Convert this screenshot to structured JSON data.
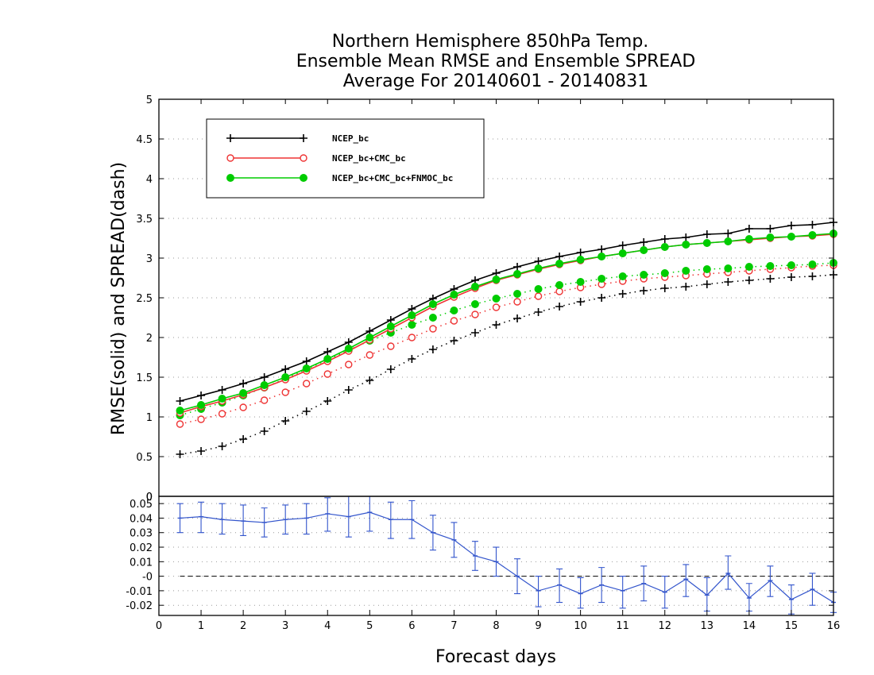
{
  "chart_data": {
    "type": "line",
    "title": [
      "Northern Hemisphere 850hPa Temp.",
      "Ensemble Mean RMSE and Ensemble SPREAD",
      "Average For 20140601 - 20140831"
    ],
    "xlabel": "Forecast days",
    "ylabel": "RMSE(solid)  and  SPREAD(dash)",
    "xlim": [
      0,
      16
    ],
    "x_ticks": [
      "0",
      "1",
      "2",
      "3",
      "4",
      "5",
      "6",
      "7",
      "8",
      "9",
      "10",
      "11",
      "12",
      "13",
      "14",
      "15",
      "16"
    ],
    "top_panel": {
      "ylim": [
        0,
        5
      ],
      "y_ticks": [
        "0",
        "0.5",
        "1",
        "1.5",
        "2",
        "2.5",
        "3",
        "3.5",
        "4",
        "4.5",
        "5"
      ],
      "grid": "horizontal-dotted",
      "legend_position": "top-left",
      "x": [
        0.5,
        1,
        1.5,
        2,
        2.5,
        3,
        3.5,
        4,
        4.5,
        5,
        5.5,
        6,
        6.5,
        7,
        7.5,
        8,
        8.5,
        9,
        9.5,
        10,
        10.5,
        11,
        11.5,
        12,
        12.5,
        13,
        13.5,
        14,
        14.5,
        15,
        15.5,
        16
      ],
      "series": [
        {
          "name": "NCEP_bc",
          "color": "#000000",
          "marker": "plus",
          "rmse": [
            1.2,
            1.27,
            1.34,
            1.42,
            1.5,
            1.6,
            1.7,
            1.82,
            1.94,
            2.08,
            2.22,
            2.36,
            2.49,
            2.61,
            2.72,
            2.81,
            2.89,
            2.96,
            3.02,
            3.07,
            3.11,
            3.16,
            3.2,
            3.24,
            3.26,
            3.3,
            3.31,
            3.37,
            3.37,
            3.41,
            3.42,
            3.45
          ],
          "spread": [
            0.53,
            0.57,
            0.63,
            0.72,
            0.82,
            0.95,
            1.07,
            1.2,
            1.34,
            1.46,
            1.6,
            1.73,
            1.85,
            1.96,
            2.06,
            2.16,
            2.24,
            2.32,
            2.39,
            2.45,
            2.5,
            2.55,
            2.59,
            2.62,
            2.64,
            2.67,
            2.7,
            2.72,
            2.74,
            2.76,
            2.77,
            2.79
          ]
        },
        {
          "name": "NCEP_bc+CMC_bc",
          "color": "#ee3333",
          "marker": "open-circle",
          "rmse": [
            1.05,
            1.13,
            1.2,
            1.28,
            1.37,
            1.47,
            1.58,
            1.7,
            1.83,
            1.97,
            2.11,
            2.25,
            2.39,
            2.51,
            2.62,
            2.72,
            2.79,
            2.86,
            2.92,
            2.97,
            3.02,
            3.06,
            3.1,
            3.14,
            3.17,
            3.19,
            3.21,
            3.23,
            3.25,
            3.27,
            3.28,
            3.3
          ],
          "spread": [
            0.91,
            0.97,
            1.04,
            1.12,
            1.21,
            1.31,
            1.42,
            1.54,
            1.66,
            1.78,
            1.89,
            2.0,
            2.11,
            2.21,
            2.29,
            2.38,
            2.45,
            2.52,
            2.58,
            2.63,
            2.67,
            2.71,
            2.74,
            2.76,
            2.78,
            2.8,
            2.82,
            2.84,
            2.86,
            2.88,
            2.9,
            2.91
          ]
        },
        {
          "name": "NCEP_bc+CMC_bc+FNMOC_bc",
          "color": "#00cc00",
          "marker": "filled-circle",
          "rmse": [
            1.08,
            1.15,
            1.23,
            1.3,
            1.4,
            1.5,
            1.61,
            1.73,
            1.86,
            2.0,
            2.14,
            2.28,
            2.42,
            2.54,
            2.64,
            2.73,
            2.8,
            2.87,
            2.93,
            2.98,
            3.02,
            3.06,
            3.1,
            3.14,
            3.17,
            3.19,
            3.21,
            3.24,
            3.26,
            3.27,
            3.29,
            3.31
          ],
          "spread": [
            1.02,
            1.1,
            1.18,
            1.27,
            1.37,
            1.48,
            1.6,
            1.72,
            1.84,
            1.96,
            2.06,
            2.16,
            2.25,
            2.34,
            2.42,
            2.49,
            2.55,
            2.61,
            2.66,
            2.7,
            2.74,
            2.77,
            2.79,
            2.81,
            2.84,
            2.86,
            2.87,
            2.89,
            2.9,
            2.91,
            2.92,
            2.94
          ]
        }
      ]
    },
    "bottom_panel": {
      "ylim": [
        -0.027,
        0.055
      ],
      "y_ticks": [
        "-0.02",
        "-0.01",
        "-0",
        "0",
        "0.01",
        "0.02",
        "0.03",
        "0.04",
        "0.05"
      ],
      "grid": "horizontal-dotted",
      "zero_line": "dashed",
      "series": {
        "color": "#3355cc",
        "x": [
          0.5,
          1,
          1.5,
          2,
          2.5,
          3,
          3.5,
          4,
          4.5,
          5,
          5.5,
          6,
          6.5,
          7,
          7.5,
          8,
          8.5,
          9,
          9.5,
          10,
          10.5,
          11,
          11.5,
          12,
          12.5,
          13,
          13.5,
          14,
          14.5,
          15,
          15.5,
          16
        ],
        "values": [
          0.04,
          0.041,
          0.039,
          0.038,
          0.037,
          0.039,
          0.04,
          0.043,
          0.041,
          0.044,
          0.039,
          0.039,
          0.03,
          0.025,
          0.014,
          0.01,
          0.0,
          -0.01,
          -0.006,
          -0.012,
          -0.006,
          -0.01,
          -0.005,
          -0.011,
          -0.002,
          -0.013,
          0.002,
          -0.015,
          -0.003,
          -0.016,
          -0.009,
          -0.018
        ],
        "err_low": [
          0.03,
          0.03,
          0.029,
          0.028,
          0.027,
          0.029,
          0.029,
          0.031,
          0.027,
          0.031,
          0.026,
          0.026,
          0.018,
          0.013,
          0.004,
          0.0,
          -0.012,
          -0.021,
          -0.018,
          -0.022,
          -0.018,
          -0.022,
          -0.017,
          -0.022,
          -0.014,
          -0.024,
          -0.009,
          -0.024,
          -0.014,
          -0.026,
          -0.02,
          -0.025
        ],
        "err_high": [
          0.05,
          0.051,
          0.05,
          0.049,
          0.047,
          0.049,
          0.05,
          0.054,
          0.055,
          0.057,
          0.051,
          0.052,
          0.042,
          0.037,
          0.024,
          0.02,
          0.012,
          0.0,
          0.005,
          -0.001,
          0.006,
          0.0,
          0.007,
          0.0,
          0.008,
          -0.001,
          0.014,
          -0.005,
          0.007,
          -0.006,
          0.002,
          -0.011
        ]
      }
    }
  }
}
